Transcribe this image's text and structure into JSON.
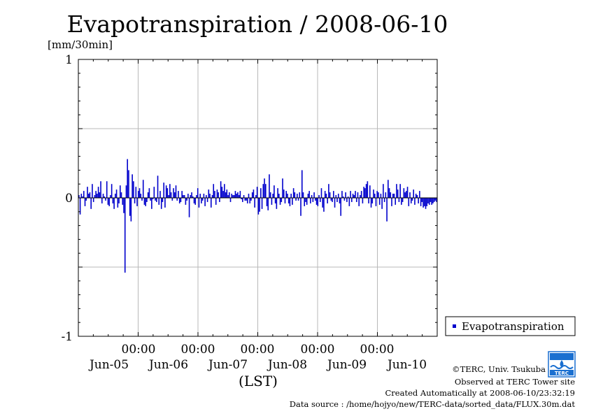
{
  "title": "Evapotranspiration / 2008-06-10",
  "colors": {
    "series": "#0000cc",
    "grid": "#b8b8b8",
    "axis": "#000000",
    "logo": "#1a6fd0"
  },
  "chart_data": {
    "type": "bar",
    "title": "Evapotranspiration / 2008-06-10",
    "ylabel": "[mm/30min]",
    "xlabel": "(LST)",
    "ylim": [
      -1,
      1
    ],
    "yticks": [
      "1",
      "0",
      "-1"
    ],
    "xtick_time_labels": [
      "00:00",
      "00:00",
      "00:00",
      "00:00",
      "00:00"
    ],
    "xtick_date_labels": [
      "Jun-05",
      "Jun-06",
      "Jun-07",
      "Jun-08",
      "Jun-09",
      "Jun-10"
    ],
    "x_range_days": 6,
    "grid": true,
    "legend_position": "right",
    "series": [
      {
        "name": "Evapotranspiration",
        "color": "#0000cc",
        "values": [
          0.02,
          -0.12,
          0.03,
          0.01,
          0.05,
          -0.06,
          -0.02,
          0.08,
          0.03,
          0.04,
          -0.08,
          0.1,
          -0.03,
          0.02,
          0.05,
          0.03,
          0.08,
          0.04,
          0.12,
          -0.04,
          0.03,
          0.01,
          -0.02,
          0.12,
          -0.05,
          -0.06,
          0.02,
          0.1,
          -0.04,
          -0.08,
          0.03,
          0.06,
          -0.07,
          -0.04,
          0.09,
          0.04,
          -0.05,
          -0.11,
          -0.54,
          0.09,
          0.28,
          0.2,
          -0.13,
          -0.17,
          0.17,
          0.12,
          -0.04,
          0.08,
          -0.06,
          0.05,
          0.07,
          0.03,
          -0.02,
          0.13,
          -0.05,
          -0.06,
          -0.03,
          0.04,
          0.07,
          -0.02,
          -0.08,
          -0.01,
          0.08,
          -0.02,
          -0.03,
          0.16,
          -0.05,
          0.05,
          -0.08,
          -0.03,
          0.11,
          -0.07,
          0.09,
          0.07,
          0.02,
          0.1,
          0.04,
          -0.02,
          0.07,
          0.04,
          0.09,
          -0.02,
          0.05,
          -0.04,
          -0.03,
          0.05,
          0.02,
          0.02,
          -0.05,
          -0.02,
          0.03,
          -0.14,
          0.02,
          0.04,
          0.01,
          -0.04,
          -0.05,
          0.02,
          0.07,
          -0.07,
          0.03,
          -0.04,
          -0.02,
          0.03,
          -0.06,
          0.02,
          -0.03,
          0.06,
          0.03,
          -0.07,
          0.02,
          0.1,
          0.05,
          -0.05,
          0.06,
          0.04,
          -0.03,
          0.12,
          0.08,
          0.05,
          0.1,
          0.04,
          0.06,
          0.02,
          0.04,
          -0.03,
          0.03,
          0.02,
          0.02,
          0.05,
          0.03,
          0.04,
          0.02,
          0.05,
          -0.01,
          -0.03,
          0.02,
          -0.02,
          -0.02,
          -0.04,
          0.03,
          -0.04,
          -0.02,
          0.04,
          0.06,
          -0.07,
          0.02,
          0.08,
          -0.12,
          -0.1,
          0.07,
          -0.08,
          0.1,
          0.14,
          0.1,
          -0.06,
          -0.09,
          0.17,
          0.04,
          -0.05,
          0.03,
          0.09,
          -0.04,
          -0.08,
          0.07,
          0.03,
          -0.05,
          -0.03,
          0.14,
          0.06,
          -0.04,
          0.05,
          0.03,
          -0.04,
          -0.06,
          0.03,
          -0.05,
          0.07,
          0.04,
          -0.02,
          0.03,
          -0.02,
          0.04,
          -0.13,
          0.2,
          0.04,
          -0.06,
          -0.03,
          -0.05,
          0.03,
          0.05,
          -0.04,
          0.02,
          -0.03,
          0.04,
          -0.02,
          -0.05,
          -0.06,
          0.02,
          -0.03,
          0.07,
          -0.07,
          -0.1,
          0.05,
          0.03,
          -0.04,
          0.1,
          0.04,
          -0.02,
          -0.03,
          0.05,
          -0.07,
          0.02,
          -0.03,
          0.03,
          -0.04,
          -0.13,
          0.05,
          0.01,
          -0.02,
          0.04,
          -0.03,
          0.01,
          -0.06,
          0.05,
          -0.03,
          0.03,
          0.02,
          0.05,
          -0.03,
          0.04,
          -0.06,
          0.02,
          0.05,
          -0.04,
          0.08,
          0.07,
          0.1,
          0.12,
          -0.04,
          0.09,
          -0.07,
          -0.04,
          0.06,
          0.03,
          -0.06,
          0.05,
          0.04,
          -0.05,
          0.03,
          -0.08,
          0.1,
          -0.03,
          0.04,
          -0.17,
          0.13,
          0.07,
          0.04,
          -0.06,
          0.03,
          0.03,
          -0.05,
          0.1,
          0.06,
          -0.03,
          0.1,
          -0.05,
          -0.03,
          0.07,
          0.04,
          0.05,
          0.08,
          -0.06,
          0.04,
          -0.04,
          -0.02,
          0.06,
          -0.05,
          0.03,
          0.02,
          -0.04,
          0.05,
          -0.06,
          -0.03,
          -0.07,
          -0.06,
          -0.08,
          -0.06,
          -0.04,
          -0.05,
          -0.03,
          -0.05,
          -0.04,
          -0.03,
          -0.02,
          -0.03
        ]
      }
    ]
  },
  "legend": {
    "label": "Evapotranspiration"
  },
  "credits": {
    "copyright": "©TERC, Univ. Tsukuba",
    "site": "Observed at TERC Tower site",
    "created": "Created Automatically at 2008-06-10/23:32:19",
    "source": "Data source : /home/hojyo/new/TERC-data/sorted_data/FLUX.30m.dat"
  },
  "logo": {
    "text": "TERC",
    "icon": "terc-logo-icon"
  }
}
